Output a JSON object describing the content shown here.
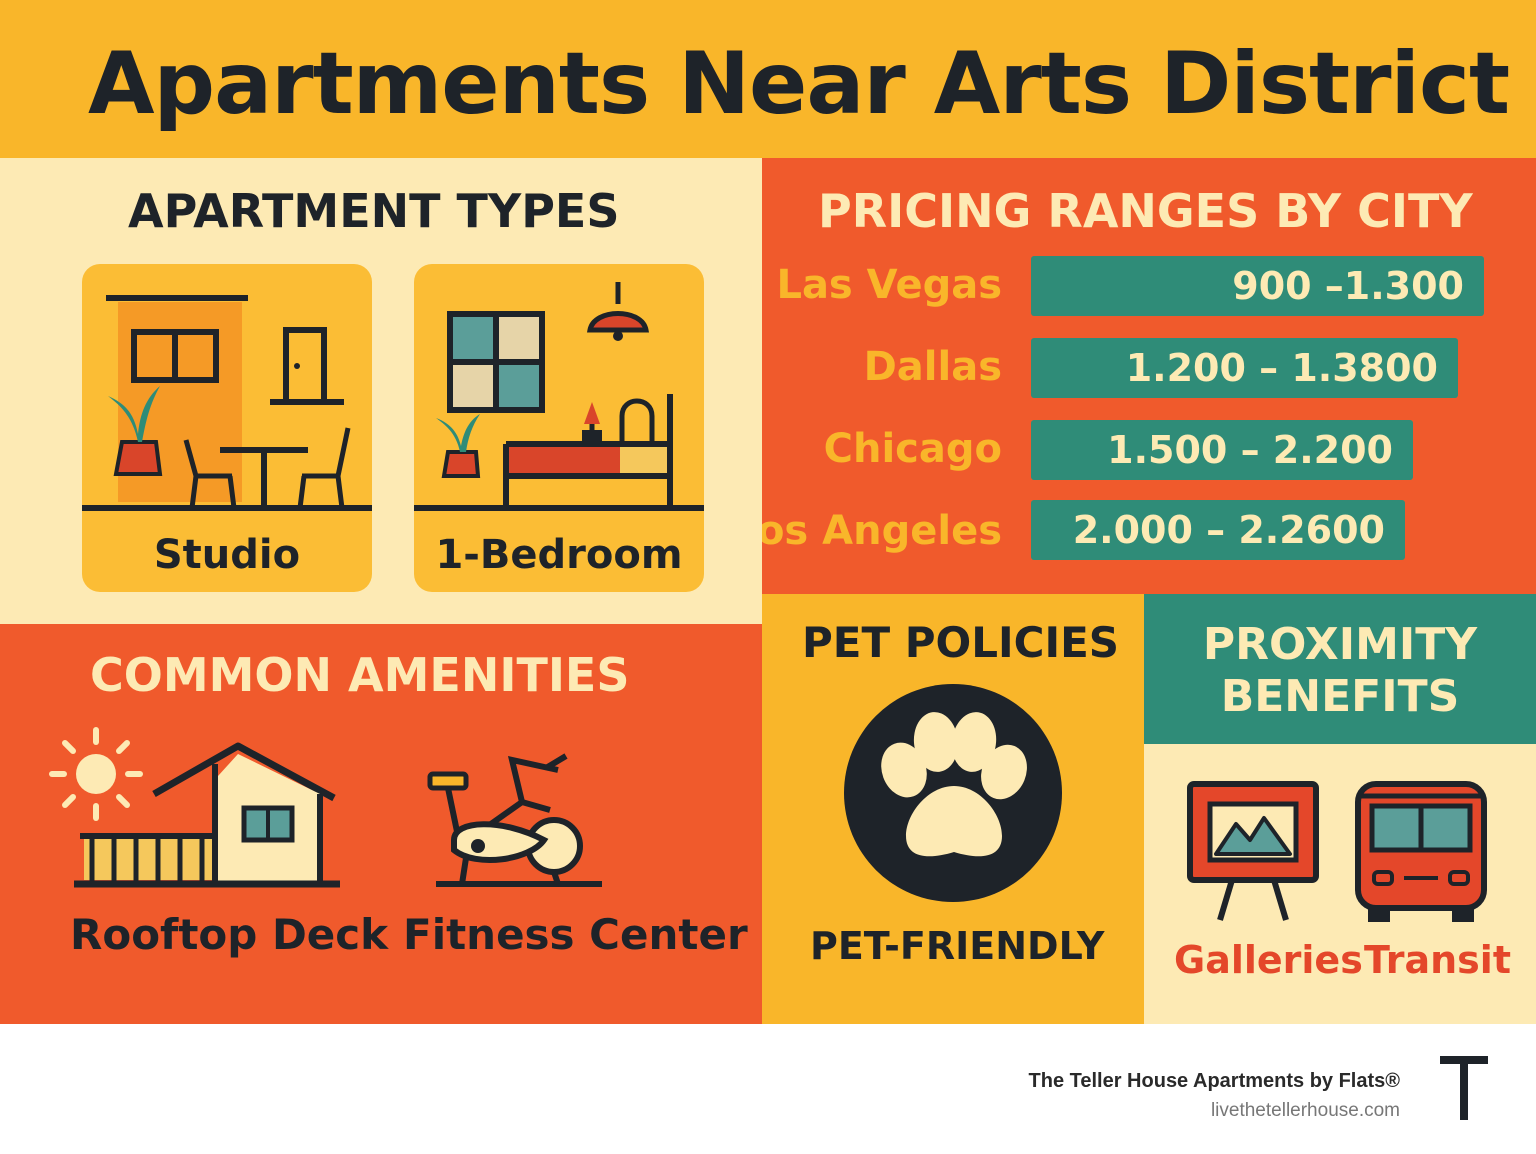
{
  "header": {
    "title": "Apartments Near Arts District"
  },
  "apartment_types": {
    "title": "APARTMENT TYPES",
    "items": [
      {
        "label": "Studio",
        "icon": "studio-room-icon"
      },
      {
        "label": "1-Bedroom",
        "icon": "bedroom-icon"
      }
    ]
  },
  "pricing": {
    "title": "PRICING RANGES BY CITY",
    "rows": [
      {
        "city": "Las Vegas",
        "range": "900 –1.300"
      },
      {
        "city": "Dallas",
        "range": "1.200 – 1.3800"
      },
      {
        "city": "Chicago",
        "range": "1.500 – 2.200"
      },
      {
        "city": "Los Angeles",
        "range": "2.000 – 2.2600"
      }
    ]
  },
  "amenities": {
    "title": "COMMON AMENITIES",
    "items": [
      {
        "label": "Rooftop Deck",
        "icon": "rooftop-deck-icon"
      },
      {
        "label": "Fitness Center",
        "icon": "exercise-bike-icon"
      }
    ]
  },
  "pets": {
    "title": "PET POLICIES",
    "label": "PET-FRIENDLY",
    "icon": "paw-icon"
  },
  "proximity": {
    "title_line1": "PROXIMITY",
    "title_line2": "BENEFITS",
    "items": [
      {
        "label": "Galleries",
        "icon": "gallery-easel-icon"
      },
      {
        "label": "Transit",
        "icon": "bus-icon"
      }
    ]
  },
  "footer": {
    "brand": "The Teller House Apartments by Flats®",
    "website": "livethetellerhouse.com",
    "logo_letter": "T"
  },
  "colors": {
    "yellow": "#f9b62a",
    "cream": "#fdeab4",
    "orange": "#f05a2c",
    "teal": "#2f8c78",
    "dark": "#1e2329"
  }
}
